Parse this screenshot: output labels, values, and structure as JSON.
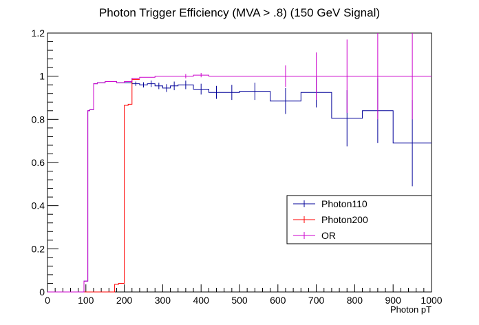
{
  "chart_data": {
    "type": "line",
    "title": "Photon Trigger Efficiency (MVA > .8) (150 GeV Signal)",
    "xlabel": "Photon pT",
    "ylabel": "",
    "xlim": [
      0,
      1000
    ],
    "ylim": [
      0,
      1.2
    ],
    "x_ticks": [
      "0",
      "100",
      "200",
      "300",
      "400",
      "500",
      "600",
      "700",
      "800",
      "900",
      "1000"
    ],
    "y_ticks": [
      "0",
      "0.2",
      "0.4",
      "0.6",
      "0.8",
      "1",
      "1.2"
    ],
    "legend_position": "right",
    "series": [
      {
        "name": "Photon110",
        "color": "#000099",
        "bins": [
          {
            "lo": 0,
            "hi": 95,
            "y": 0.0
          },
          {
            "lo": 95,
            "hi": 105,
            "y": 0.05
          },
          {
            "lo": 105,
            "hi": 110,
            "y": 0.84
          },
          {
            "lo": 110,
            "hi": 120,
            "y": 0.845
          },
          {
            "lo": 120,
            "hi": 130,
            "y": 0.965
          },
          {
            "lo": 130,
            "hi": 150,
            "y": 0.97
          },
          {
            "lo": 150,
            "hi": 180,
            "y": 0.975
          },
          {
            "lo": 180,
            "hi": 220,
            "y": 0.97
          },
          {
            "lo": 220,
            "hi": 240,
            "y": 0.965,
            "err": 0.01
          },
          {
            "lo": 240,
            "hi": 260,
            "y": 0.96,
            "err": 0.012
          },
          {
            "lo": 260,
            "hi": 280,
            "y": 0.965,
            "err": 0.015
          },
          {
            "lo": 280,
            "hi": 300,
            "y": 0.955,
            "err": 0.015
          },
          {
            "lo": 300,
            "hi": 320,
            "y": 0.945,
            "err": 0.018
          },
          {
            "lo": 320,
            "hi": 340,
            "y": 0.955,
            "err": 0.02
          },
          {
            "lo": 340,
            "hi": 380,
            "y": 0.96,
            "err": 0.02
          },
          {
            "lo": 380,
            "hi": 420,
            "y": 0.94,
            "err": 0.025
          },
          {
            "lo": 420,
            "hi": 460,
            "y": 0.925,
            "err": 0.03
          },
          {
            "lo": 460,
            "hi": 500,
            "y": 0.925,
            "err": 0.035
          },
          {
            "lo": 500,
            "hi": 580,
            "y": 0.93,
            "err": 0.04
          },
          {
            "lo": 580,
            "hi": 660,
            "y": 0.885,
            "err": 0.06
          },
          {
            "lo": 660,
            "hi": 740,
            "y": 0.925,
            "err": 0.07
          },
          {
            "lo": 740,
            "hi": 820,
            "y": 0.805,
            "err": 0.13
          },
          {
            "lo": 820,
            "hi": 900,
            "y": 0.84,
            "err": 0.15
          },
          {
            "lo": 900,
            "hi": 1000,
            "y": 0.69,
            "err": 0.2
          }
        ]
      },
      {
        "name": "Photon200",
        "color": "#ff0000",
        "bins": [
          {
            "lo": 0,
            "hi": 175,
            "y": 0.0
          },
          {
            "lo": 175,
            "hi": 185,
            "y": 0.035
          },
          {
            "lo": 185,
            "hi": 200,
            "y": 0.04
          },
          {
            "lo": 200,
            "hi": 210,
            "y": 0.865
          },
          {
            "lo": 210,
            "hi": 220,
            "y": 0.87
          },
          {
            "lo": 220,
            "hi": 240,
            "y": 0.985
          }
        ]
      },
      {
        "name": "OR",
        "color": "#cc00cc",
        "bins": [
          {
            "lo": 0,
            "hi": 95,
            "y": 0.0
          },
          {
            "lo": 95,
            "hi": 105,
            "y": 0.05
          },
          {
            "lo": 105,
            "hi": 110,
            "y": 0.84
          },
          {
            "lo": 110,
            "hi": 120,
            "y": 0.845
          },
          {
            "lo": 120,
            "hi": 130,
            "y": 0.965
          },
          {
            "lo": 130,
            "hi": 150,
            "y": 0.97
          },
          {
            "lo": 150,
            "hi": 180,
            "y": 0.975
          },
          {
            "lo": 180,
            "hi": 200,
            "y": 0.97
          },
          {
            "lo": 200,
            "hi": 220,
            "y": 0.975
          },
          {
            "lo": 220,
            "hi": 240,
            "y": 0.99
          },
          {
            "lo": 240,
            "hi": 260,
            "y": 0.995
          },
          {
            "lo": 260,
            "hi": 280,
            "y": 0.995
          },
          {
            "lo": 280,
            "hi": 300,
            "y": 1.0
          },
          {
            "lo": 300,
            "hi": 340,
            "y": 1.0
          },
          {
            "lo": 340,
            "hi": 380,
            "y": 1.0,
            "err": 0.01
          },
          {
            "lo": 380,
            "hi": 420,
            "y": 1.005,
            "err": 0.01
          },
          {
            "lo": 420,
            "hi": 460,
            "y": 1.0
          },
          {
            "lo": 460,
            "hi": 500,
            "y": 1.0
          },
          {
            "lo": 500,
            "hi": 580,
            "y": 1.0
          },
          {
            "lo": 580,
            "hi": 660,
            "y": 1.0,
            "err": 0.05
          },
          {
            "lo": 660,
            "hi": 740,
            "y": 1.0,
            "err": 0.11
          },
          {
            "lo": 740,
            "hi": 820,
            "y": 1.0,
            "err": 0.17
          },
          {
            "lo": 820,
            "hi": 900,
            "y": 1.0,
            "err": 0.2
          },
          {
            "lo": 900,
            "hi": 1000,
            "y": 1.0,
            "err": 0.2
          }
        ]
      }
    ]
  }
}
